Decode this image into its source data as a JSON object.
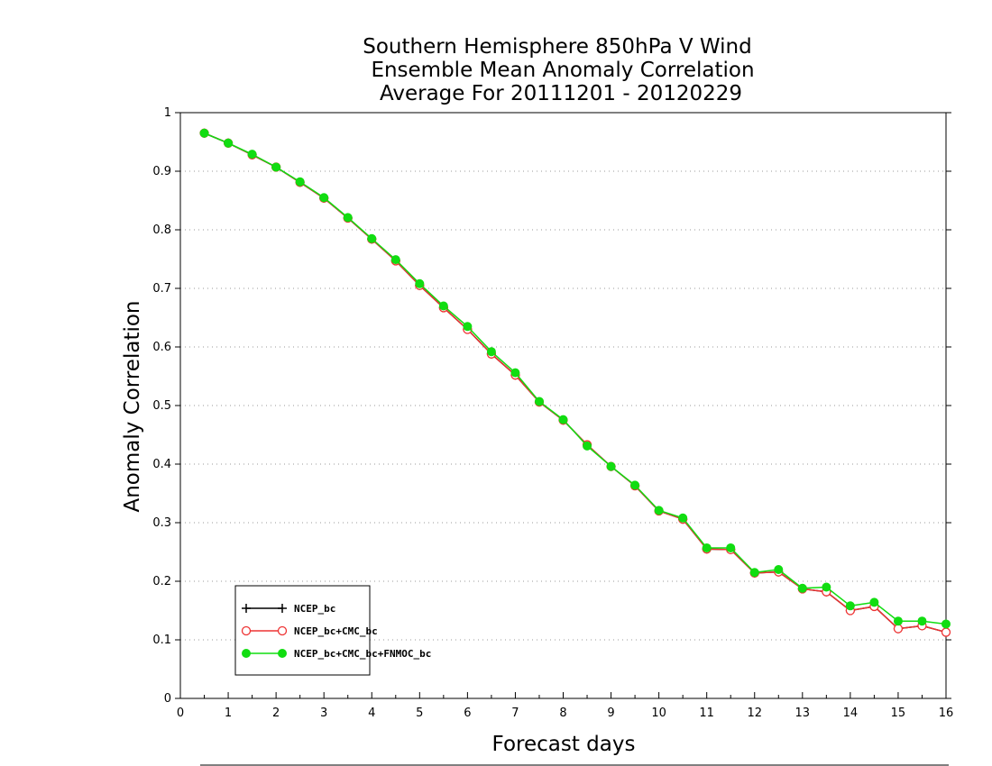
{
  "chart_data": {
    "type": "line",
    "title": [
      "Southern Hemisphere 850hPa V Wind",
      "Ensemble Mean Anomaly Correlation",
      "Average For 20111201 - 20120229"
    ],
    "xlabel": "Forecast days",
    "ylabel": "Anomaly Correlation",
    "xlim": [
      0,
      16
    ],
    "ylim": [
      0,
      1
    ],
    "x_ticks": [
      0,
      1,
      2,
      3,
      4,
      5,
      6,
      7,
      8,
      9,
      10,
      11,
      12,
      13,
      14,
      15,
      16
    ],
    "y_ticks": [
      0,
      0.1,
      0.2,
      0.3,
      0.4,
      0.5,
      0.6,
      0.7,
      0.8,
      0.9,
      1
    ],
    "y_tick_labels": [
      "0",
      "0.1",
      "0.2",
      "0.3",
      "0.4",
      "0.5",
      "0.6",
      "0.7",
      "0.8",
      "0.9",
      "1"
    ],
    "x_tick_labels": [
      "0",
      "1",
      "2",
      "3",
      "4",
      "5",
      "6",
      "7",
      "8",
      "9",
      "10",
      "11",
      "12",
      "13",
      "14",
      "15",
      "16"
    ],
    "grid": "horizontal-dotted",
    "legend_position": "bottom-left",
    "x": [
      0.5,
      1,
      1.5,
      2,
      2.5,
      3,
      3.5,
      4,
      4.5,
      5,
      5.5,
      6,
      6.5,
      7,
      7.5,
      8,
      8.5,
      9,
      9.5,
      10,
      10.5,
      11,
      11.5,
      12,
      12.5,
      13,
      13.5,
      14,
      14.5,
      15,
      15.5,
      16
    ],
    "series": [
      {
        "name": "NCEP_bc",
        "color": "#000000",
        "marker": "plus",
        "values": [
          0.965,
          0.948,
          0.928,
          0.907,
          0.881,
          0.854,
          0.82,
          0.784,
          0.747,
          0.705,
          0.667,
          0.63,
          0.588,
          0.552,
          0.506,
          0.475,
          0.433,
          0.396,
          0.363,
          0.32,
          0.306,
          0.255,
          0.254,
          0.214,
          0.216,
          0.187,
          0.182,
          0.15,
          0.157,
          0.119,
          0.124,
          0.113
        ]
      },
      {
        "name": "NCEP_bc+CMC_bc",
        "color": "#ee3333",
        "marker": "open-circle",
        "values": [
          0.965,
          0.948,
          0.928,
          0.907,
          0.881,
          0.854,
          0.82,
          0.784,
          0.747,
          0.705,
          0.667,
          0.63,
          0.588,
          0.552,
          0.506,
          0.475,
          0.433,
          0.396,
          0.363,
          0.32,
          0.306,
          0.255,
          0.254,
          0.214,
          0.216,
          0.187,
          0.182,
          0.15,
          0.157,
          0.119,
          0.124,
          0.113
        ]
      },
      {
        "name": "NCEP_bc+CMC_bc+FNMOC_bc",
        "color": "#11dd11",
        "marker": "filled-circle",
        "values": [
          0.965,
          0.948,
          0.929,
          0.907,
          0.882,
          0.855,
          0.821,
          0.785,
          0.749,
          0.708,
          0.67,
          0.635,
          0.592,
          0.556,
          0.507,
          0.476,
          0.431,
          0.396,
          0.364,
          0.321,
          0.308,
          0.257,
          0.257,
          0.215,
          0.22,
          0.188,
          0.19,
          0.158,
          0.164,
          0.132,
          0.132,
          0.127
        ]
      }
    ]
  }
}
